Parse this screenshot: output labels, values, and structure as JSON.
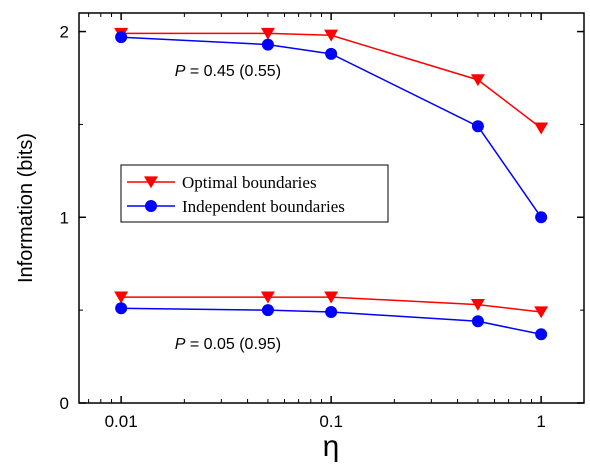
{
  "chart_data": {
    "type": "line",
    "xlabel": "η",
    "ylabel": "Information (bits)",
    "x_scale": "log",
    "xlim": [
      0.0063,
      1.6
    ],
    "ylim": [
      0,
      2.1
    ],
    "x_ticks": [
      0.01,
      0.1,
      1
    ],
    "x_tick_labels": [
      "0.01",
      "0.1",
      "1"
    ],
    "y_ticks": [
      0,
      1,
      2
    ],
    "y_tick_labels": [
      "0",
      "1",
      "2"
    ],
    "grid": false,
    "legend_position": "center-left",
    "x": [
      0.01,
      0.05,
      0.1,
      0.5,
      1
    ],
    "series": [
      {
        "name": "Optimal boundaries",
        "group": "P = 0.45 (0.55)",
        "color": "#ff0000",
        "marker": "triangle-down",
        "values": [
          1.99,
          1.99,
          1.98,
          1.74,
          1.48
        ]
      },
      {
        "name": "Independent boundaries",
        "group": "P = 0.45 (0.55)",
        "color": "#0000ff",
        "marker": "circle",
        "values": [
          1.97,
          1.93,
          1.88,
          1.49,
          1.0
        ]
      },
      {
        "name": "Optimal boundaries",
        "group": "P = 0.05 (0.95)",
        "color": "#ff0000",
        "marker": "triangle-down",
        "values": [
          0.57,
          0.57,
          0.57,
          0.53,
          0.49
        ]
      },
      {
        "name": "Independent boundaries",
        "group": "P = 0.05 (0.95)",
        "color": "#0000ff",
        "marker": "circle",
        "values": [
          0.51,
          0.5,
          0.49,
          0.44,
          0.37
        ]
      }
    ],
    "annotations": [
      {
        "italic": "P",
        "rest": " = 0.45 (0.55)",
        "x": 0.018,
        "y": 1.76
      },
      {
        "italic": "P",
        "rest": " = 0.05 (0.95)",
        "x": 0.018,
        "y": 0.29
      }
    ],
    "legend": [
      {
        "label": "Optimal boundaries",
        "color": "#ff0000",
        "marker": "triangle-down"
      },
      {
        "label": "Independent boundaries",
        "color": "#0000ff",
        "marker": "circle"
      }
    ]
  }
}
